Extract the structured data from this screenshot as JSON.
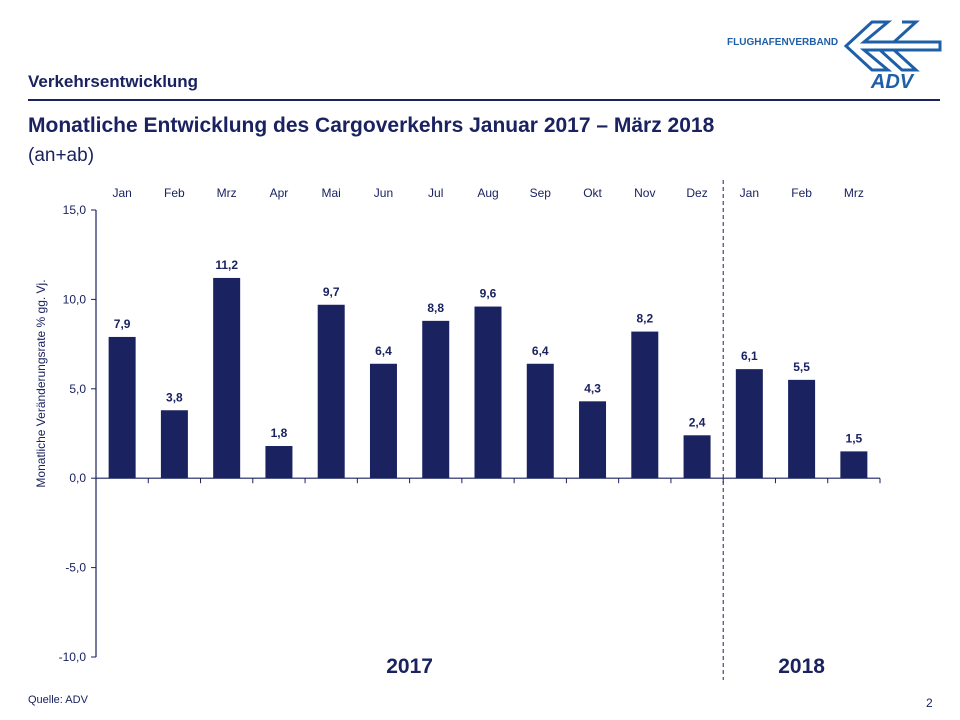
{
  "header": {
    "section": "Verkehrsentwicklung",
    "logo_text": "FLUGHAFENVERBAND",
    "logo_mark": "ADV",
    "title": "Monatliche Entwicklung des Cargoverkehrs Januar 2017 – März 2018",
    "subtitle": "(an+ab)"
  },
  "footer": {
    "source": "Quelle: ADV",
    "page": "2"
  },
  "colors": {
    "bar": "#1a2260",
    "text": "#1a2260",
    "logo": "#1f5fa8"
  },
  "chart_data": {
    "type": "bar",
    "categories": [
      "Jan",
      "Feb",
      "Mrz",
      "Apr",
      "Mai",
      "Jun",
      "Jul",
      "Aug",
      "Sep",
      "Okt",
      "Nov",
      "Dez",
      "Jan",
      "Feb",
      "Mrz"
    ],
    "values": [
      7.9,
      3.8,
      11.2,
      1.8,
      9.7,
      6.4,
      8.8,
      9.6,
      6.4,
      4.3,
      8.2,
      2.4,
      6.1,
      5.5,
      1.5
    ],
    "data_labels": [
      "7,9",
      "3,8",
      "11,2",
      "1,8",
      "9,7",
      "6,4",
      "8,8",
      "9,6",
      "6,4",
      "4,3",
      "8,2",
      "2,4",
      "6,1",
      "5,5",
      "1,5"
    ],
    "ylabel": "Monatliche Veränderungsrate % gg. Vj.",
    "ylim": [
      -10,
      15
    ],
    "yticks": [
      15,
      10,
      5,
      0,
      -5,
      -10
    ],
    "ytick_labels": [
      "15,0",
      "10,0",
      "5,0",
      "0,0",
      "-5,0",
      "-10,0"
    ],
    "groups": [
      {
        "label": "2017",
        "months": 12
      },
      {
        "label": "2018",
        "months": 3
      }
    ],
    "grid": false,
    "category_labels_position": "top"
  }
}
